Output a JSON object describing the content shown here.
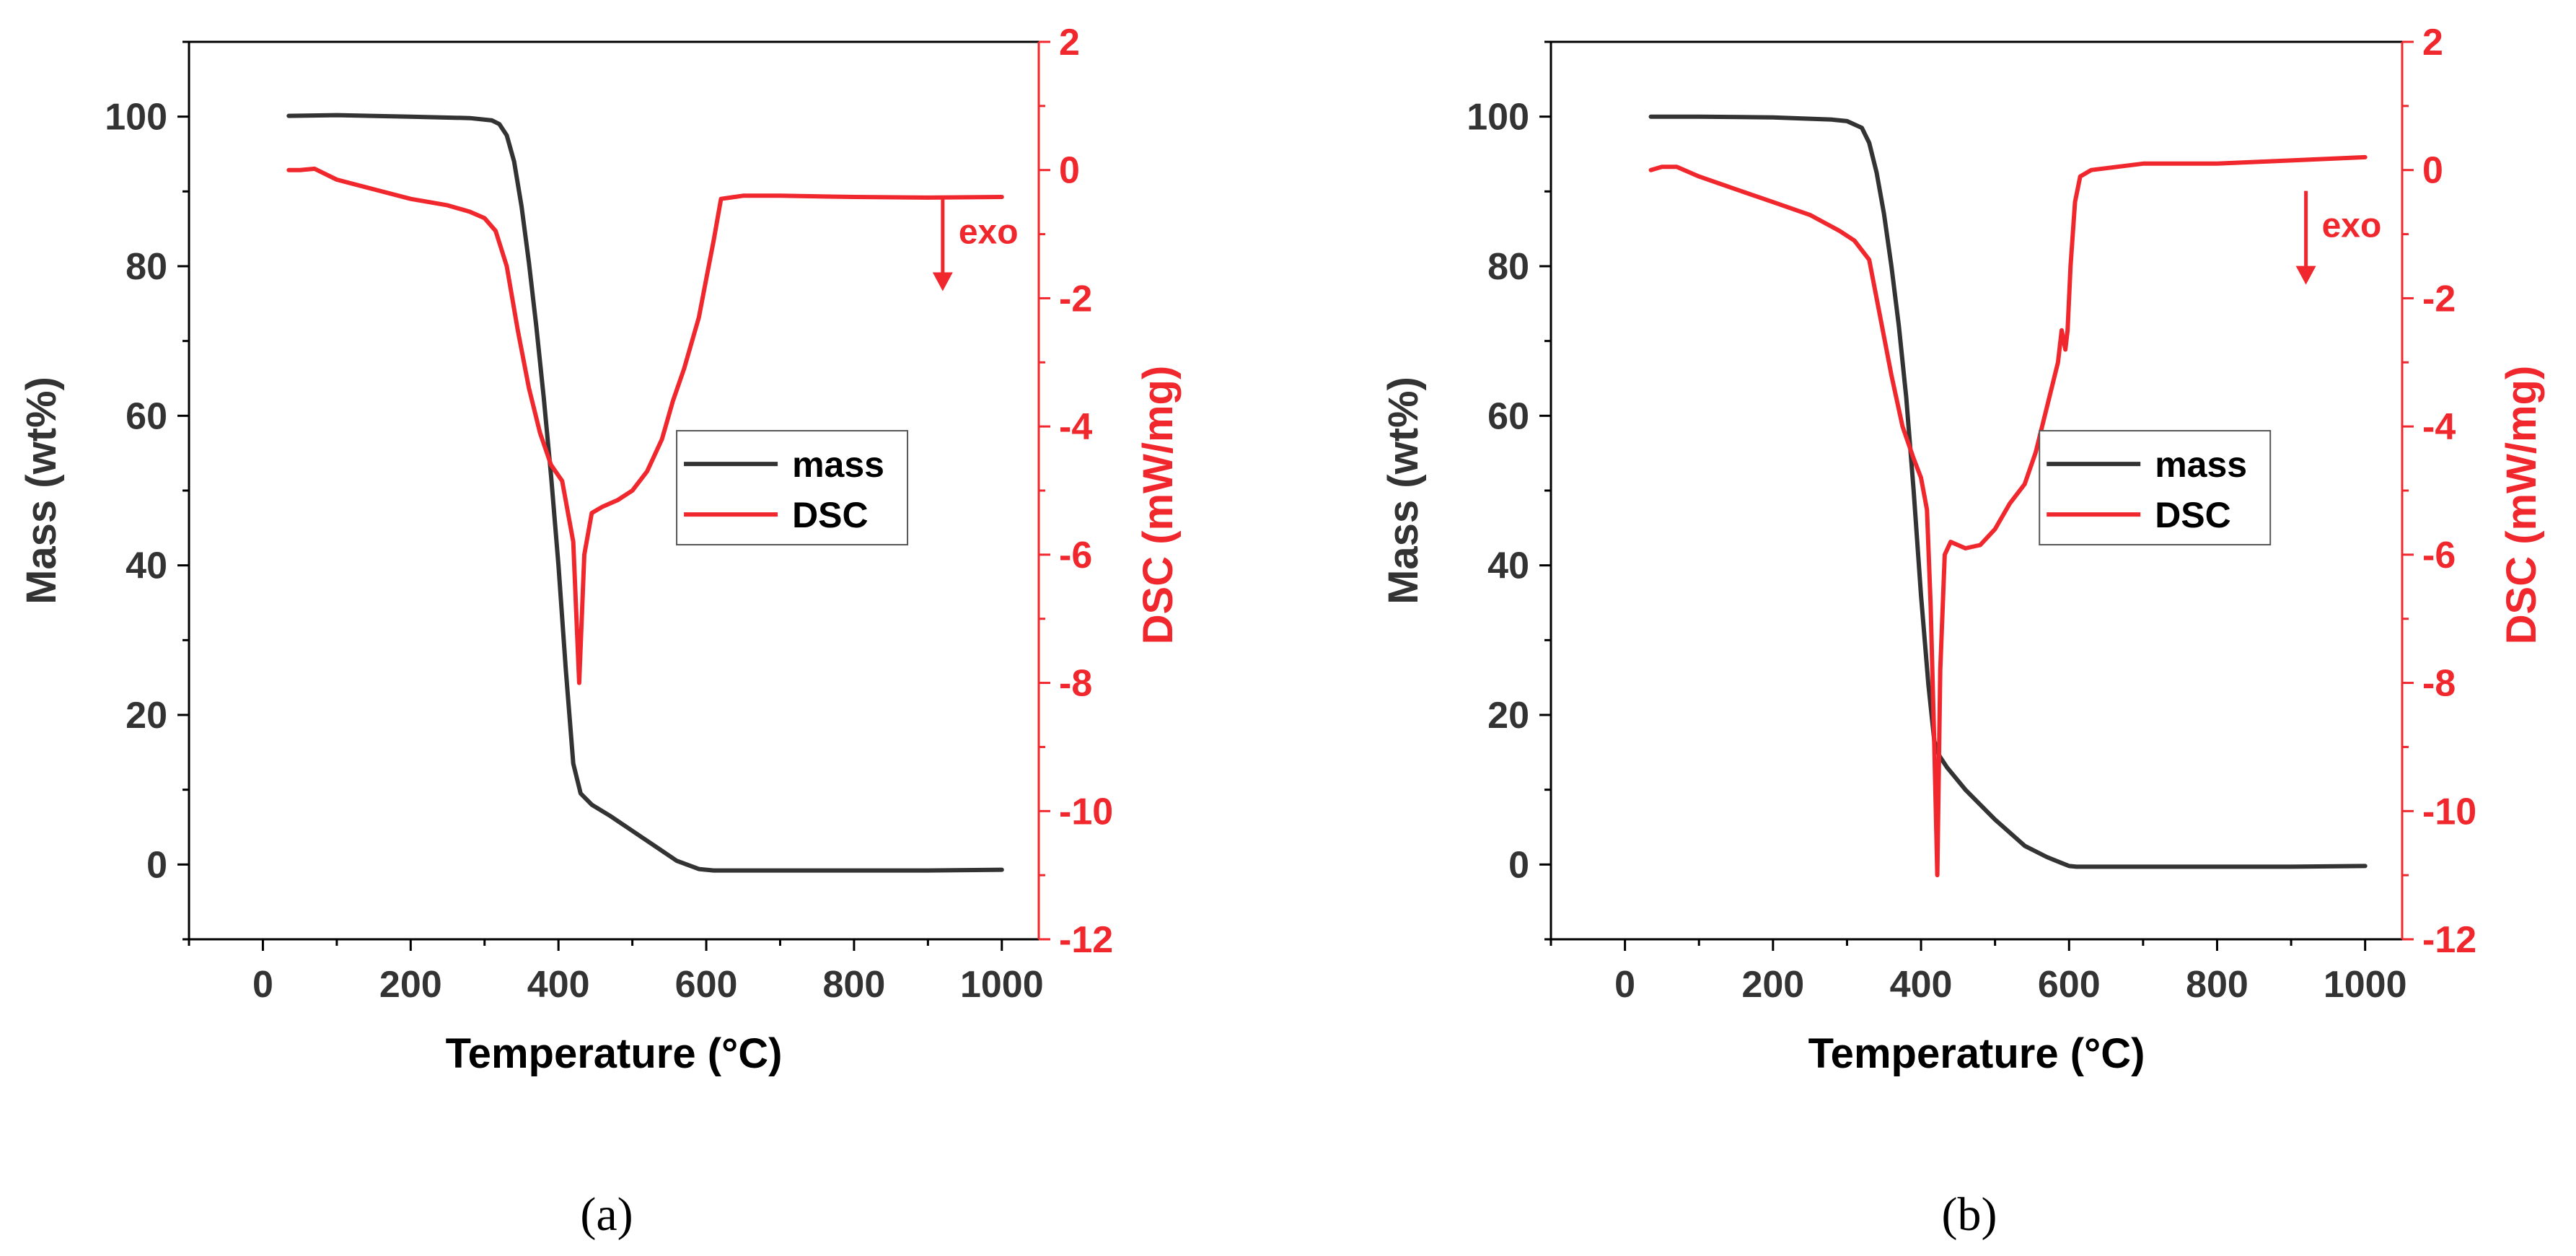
{
  "figure": {
    "captions": [
      "(a)",
      "(b)"
    ]
  },
  "colors": {
    "mass": "#333333",
    "dsc": "#f0282d",
    "axis": "#000000"
  },
  "chart_data": [
    {
      "type": "line",
      "panel": "a",
      "xlabel": "Temperature (°C)",
      "ylabel_left": "Mass (wt%)",
      "ylabel_right": "DSC (mW/mg)",
      "xlim": [
        -100,
        1050
      ],
      "ylim_left": [
        -10,
        110
      ],
      "ylim_right": [
        -12,
        2
      ],
      "xticks": [
        0,
        200,
        400,
        600,
        800,
        1000
      ],
      "yticks_left": [
        0,
        20,
        40,
        60,
        80,
        100
      ],
      "yticks_right": [
        -12,
        -10,
        -8,
        -6,
        -4,
        -2,
        0,
        2
      ],
      "legend": {
        "position": "center-right",
        "entries": [
          "mass",
          "DSC"
        ]
      },
      "annotation": {
        "text": "exo",
        "arrow": "down",
        "x": 920,
        "y_right": -1.1
      },
      "series": [
        {
          "name": "mass",
          "axis": "left",
          "x": [
            35,
            100,
            200,
            280,
            310,
            320,
            330,
            340,
            350,
            360,
            370,
            380,
            390,
            400,
            410,
            420,
            430,
            445,
            470,
            500,
            530,
            560,
            590,
            610,
            650,
            700,
            800,
            900,
            1000
          ],
          "y": [
            100.1,
            100.2,
            100.0,
            99.8,
            99.5,
            99.0,
            97.5,
            94.0,
            88.0,
            80.5,
            72.0,
            62.5,
            52.0,
            40.0,
            26.0,
            13.5,
            9.5,
            8.0,
            6.5,
            4.5,
            2.5,
            0.5,
            -0.6,
            -0.8,
            -0.8,
            -0.8,
            -0.8,
            -0.8,
            -0.7
          ]
        },
        {
          "name": "DSC",
          "axis": "right",
          "x": [
            35,
            50,
            70,
            100,
            150,
            200,
            250,
            280,
            300,
            315,
            330,
            345,
            360,
            375,
            390,
            405,
            420,
            428,
            435,
            445,
            460,
            480,
            500,
            520,
            540,
            555,
            570,
            590,
            600,
            610,
            620,
            650,
            700,
            800,
            900,
            1000
          ],
          "y": [
            0.0,
            0.0,
            0.02,
            -0.15,
            -0.3,
            -0.45,
            -0.55,
            -0.65,
            -0.75,
            -0.95,
            -1.5,
            -2.5,
            -3.4,
            -4.1,
            -4.6,
            -4.85,
            -5.8,
            -8.0,
            -6.0,
            -5.35,
            -5.25,
            -5.15,
            -5.0,
            -4.7,
            -4.2,
            -3.6,
            -3.1,
            -2.3,
            -1.7,
            -1.1,
            -0.45,
            -0.4,
            -0.4,
            -0.42,
            -0.43,
            -0.42
          ]
        }
      ]
    },
    {
      "type": "line",
      "panel": "b",
      "xlabel": "Temperature (°C)",
      "ylabel_left": "Mass (wt%)",
      "ylabel_right": "DSC (mW/mg)",
      "xlim": [
        -100,
        1050
      ],
      "ylim_left": [
        -10,
        110
      ],
      "ylim_right": [
        -12,
        2
      ],
      "xticks": [
        0,
        200,
        400,
        600,
        800,
        1000
      ],
      "yticks_left": [
        0,
        20,
        40,
        60,
        80,
        100
      ],
      "yticks_right": [
        -12,
        -10,
        -8,
        -6,
        -4,
        -2,
        0,
        2
      ],
      "legend": {
        "position": "center-right",
        "entries": [
          "mass",
          "DSC"
        ]
      },
      "annotation": {
        "text": "exo",
        "arrow": "down",
        "x": 920,
        "y_right": -1.0
      },
      "series": [
        {
          "name": "mass",
          "axis": "left",
          "x": [
            35,
            100,
            200,
            280,
            300,
            320,
            330,
            340,
            350,
            360,
            370,
            380,
            390,
            400,
            410,
            418,
            425,
            435,
            460,
            500,
            540,
            570,
            590,
            600,
            610,
            650,
            700,
            800,
            900,
            1000
          ],
          "y": [
            100.0,
            100.0,
            99.9,
            99.6,
            99.4,
            98.5,
            96.5,
            92.5,
            87.0,
            80.0,
            72.0,
            62.5,
            50.0,
            36.0,
            24.0,
            16.5,
            14.5,
            13.0,
            10.0,
            6.0,
            2.5,
            1.0,
            0.2,
            -0.2,
            -0.3,
            -0.3,
            -0.3,
            -0.3,
            -0.3,
            -0.2
          ]
        },
        {
          "name": "DSC",
          "axis": "right",
          "x": [
            35,
            50,
            70,
            100,
            150,
            200,
            250,
            290,
            310,
            330,
            345,
            360,
            375,
            390,
            400,
            408,
            413,
            418,
            422,
            426,
            432,
            440,
            460,
            480,
            500,
            520,
            540,
            555,
            570,
            585,
            590,
            595,
            598,
            602,
            608,
            615,
            630,
            700,
            800,
            900,
            1000
          ],
          "y": [
            0.0,
            0.05,
            0.05,
            -0.1,
            -0.3,
            -0.5,
            -0.7,
            -0.95,
            -1.1,
            -1.4,
            -2.3,
            -3.2,
            -4.0,
            -4.5,
            -4.8,
            -5.3,
            -6.8,
            -9.0,
            -11.0,
            -7.8,
            -6.0,
            -5.8,
            -5.9,
            -5.85,
            -5.6,
            -5.2,
            -4.9,
            -4.4,
            -3.7,
            -3.0,
            -2.5,
            -2.8,
            -2.5,
            -1.5,
            -0.5,
            -0.1,
            0.0,
            0.1,
            0.1,
            0.15,
            0.2
          ]
        }
      ]
    }
  ]
}
